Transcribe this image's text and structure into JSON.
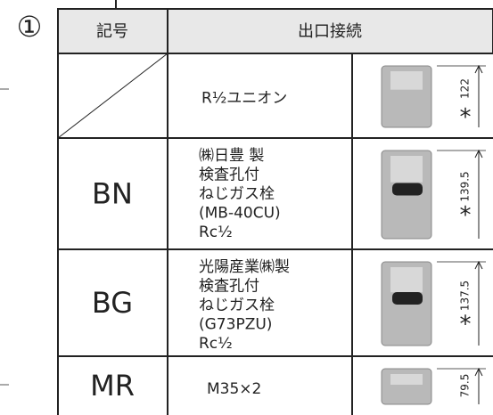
{
  "badge": "①",
  "header": {
    "symbol": "記号",
    "outlet": "出口接続"
  },
  "rows": [
    {
      "symbol": null,
      "description": [
        "R¹⁄₂ユニオン"
      ],
      "mark": "*",
      "dimension": "122"
    },
    {
      "symbol": "BN",
      "description": [
        "㈱日豊 製",
        "検査孔付",
        "ねじガス栓",
        "(MB-40CU)",
        "Rc¹⁄₂"
      ],
      "mark": "*",
      "dimension": "139.5"
    },
    {
      "symbol": "BG",
      "description": [
        "光陽産業㈱製",
        "検査孔付",
        "ねじガス栓",
        "(G73PZU)",
        "Rc¹⁄₂"
      ],
      "mark": "*",
      "dimension": "137.5"
    },
    {
      "symbol": "MR",
      "description": [
        "M35×2"
      ],
      "mark": null,
      "dimension": "79.5"
    }
  ]
}
